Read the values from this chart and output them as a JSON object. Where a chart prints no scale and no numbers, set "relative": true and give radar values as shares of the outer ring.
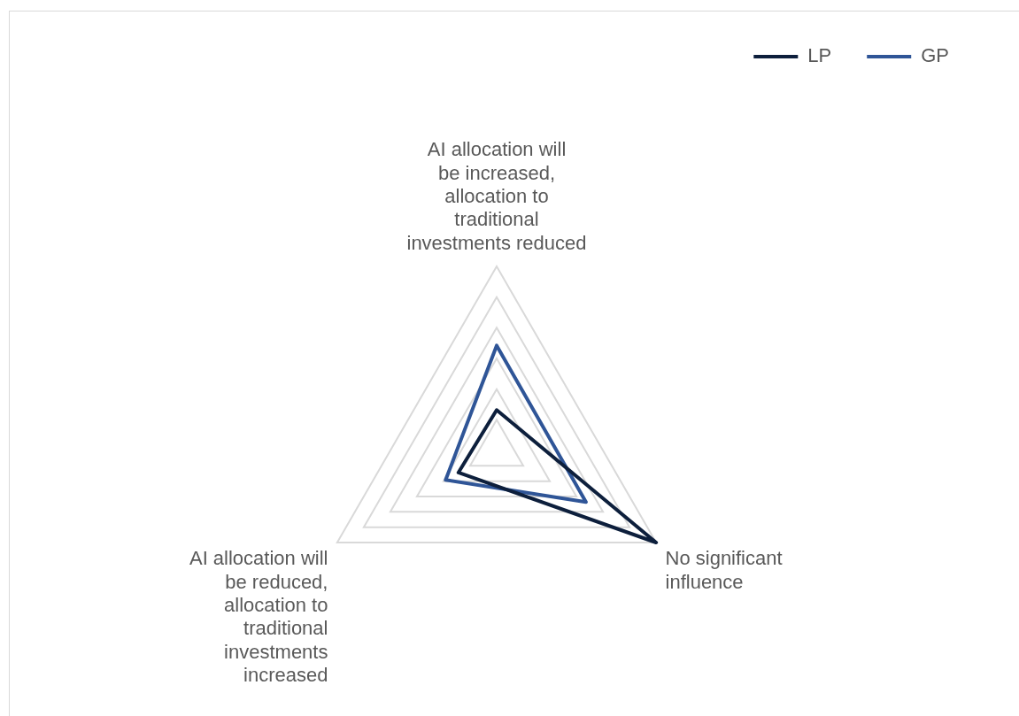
{
  "chart_data": {
    "type": "radar",
    "relative": true,
    "grid": true,
    "legend": "top right",
    "marker": "none",
    "categories": [
      "AI allocation will be increased, allocation to traditional investments reduced",
      "No significant influence",
      "AI allocation will be reduced, allocation to traditional investments increased"
    ],
    "series": [
      {
        "name": "LP",
        "color": "#0d1f3c",
        "values": [
          0.22,
          1.0,
          0.24
        ]
      },
      {
        "name": "GP",
        "color": "#2f5597",
        "values": [
          0.57,
          0.56,
          0.32
        ]
      }
    ]
  }
}
